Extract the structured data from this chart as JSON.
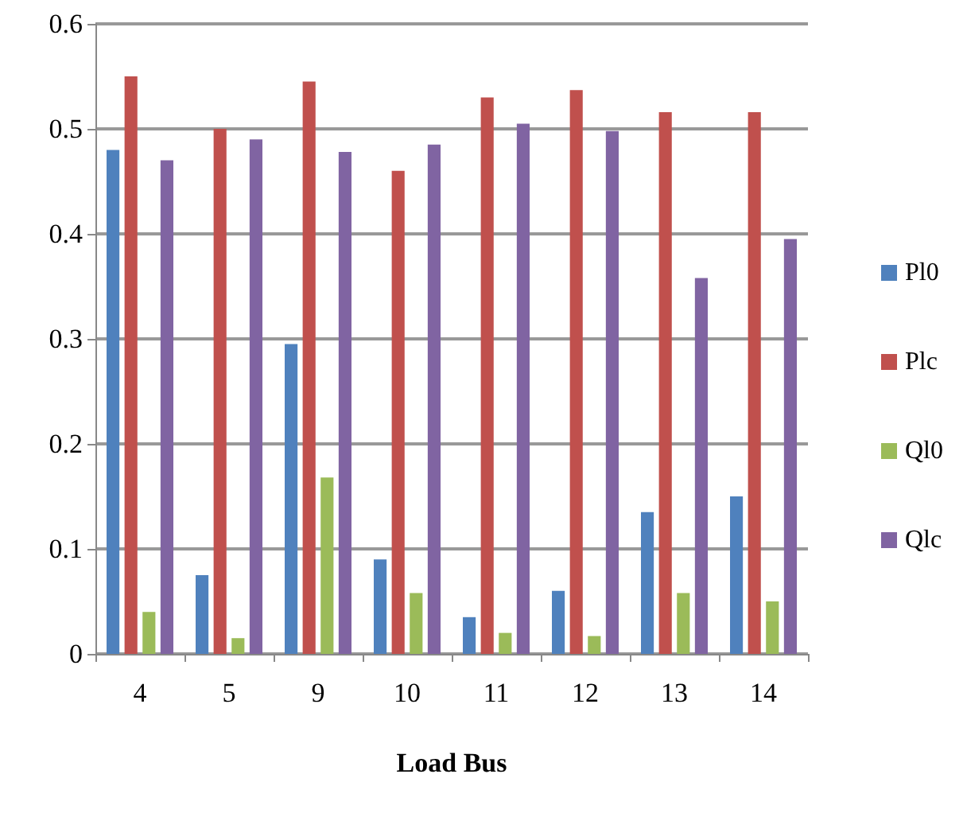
{
  "chart_data": {
    "type": "bar",
    "xlabel": "Load Bus",
    "categories": [
      "4",
      "5",
      "9",
      "10",
      "11",
      "12",
      "13",
      "14"
    ],
    "series": [
      {
        "name": "Pl0",
        "color": "#4f81bd",
        "values": [
          0.48,
          0.075,
          0.295,
          0.09,
          0.035,
          0.06,
          0.135,
          0.15
        ]
      },
      {
        "name": "Plc",
        "color": "#c0504d",
        "values": [
          0.55,
          0.5,
          0.545,
          0.46,
          0.53,
          0.537,
          0.516,
          0.516
        ]
      },
      {
        "name": "Ql0",
        "color": "#9bbb59",
        "values": [
          0.04,
          0.015,
          0.168,
          0.058,
          0.02,
          0.017,
          0.058,
          0.05
        ]
      },
      {
        "name": "Qlc",
        "color": "#8064a2",
        "values": [
          0.47,
          0.49,
          0.478,
          0.485,
          0.505,
          0.498,
          0.358,
          0.395
        ]
      }
    ],
    "ylim": [
      0,
      0.6
    ],
    "yticks": [
      0,
      0.1,
      0.2,
      0.3,
      0.4,
      0.5,
      0.6
    ],
    "grid": "y",
    "legend": "right"
  }
}
